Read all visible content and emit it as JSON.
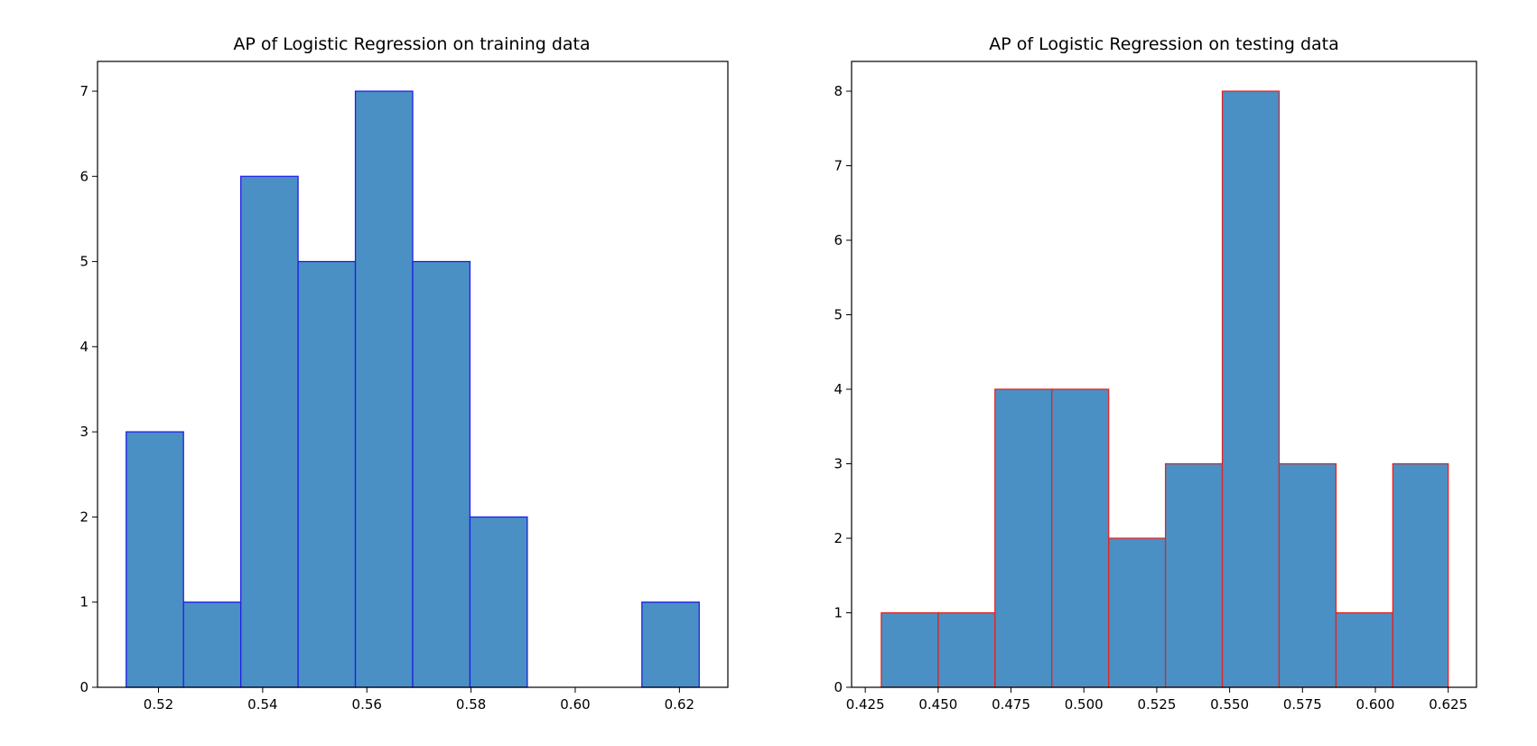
{
  "chart_data": [
    {
      "type": "bar",
      "title": "AP of Logistic Regression on training data",
      "xlabel": "",
      "ylabel": "",
      "xlim": [
        0.5083,
        0.6293
      ],
      "ylim": [
        0,
        7.35
      ],
      "xticks": [
        "0.52",
        "0.54",
        "0.56",
        "0.58",
        "0.60",
        "0.62"
      ],
      "yticks": [
        "0",
        "1",
        "2",
        "3",
        "4",
        "5",
        "6",
        "7"
      ],
      "bin_edges": [
        0.5138,
        0.5248,
        0.5358,
        0.5468,
        0.5578,
        0.5688,
        0.5798,
        0.5908,
        0.6018,
        0.6128,
        0.6238
      ],
      "values": [
        3,
        1,
        6,
        5,
        7,
        5,
        2,
        0,
        0,
        1
      ],
      "bar_color": "#4a90c4",
      "edge_color": "#1f1fe6",
      "grid": false
    },
    {
      "type": "bar",
      "title": "AP of Logistic Regression on testing data",
      "xlabel": "",
      "ylabel": "",
      "xlim": [
        0.4203,
        0.6347
      ],
      "ylim": [
        0,
        8.4
      ],
      "xticks": [
        "0.425",
        "0.450",
        "0.475",
        "0.500",
        "0.525",
        "0.550",
        "0.575",
        "0.600",
        "0.625"
      ],
      "yticks": [
        "0",
        "1",
        "2",
        "3",
        "4",
        "5",
        "6",
        "7",
        "8"
      ],
      "bin_edges": [
        0.4305,
        0.45,
        0.4695,
        0.489,
        0.5085,
        0.528,
        0.5475,
        0.567,
        0.5865,
        0.606,
        0.625
      ],
      "values": [
        1,
        1,
        4,
        4,
        2,
        3,
        8,
        3,
        1,
        3
      ],
      "bar_color": "#4a90c4",
      "edge_color": "#e02424",
      "grid": false
    }
  ]
}
